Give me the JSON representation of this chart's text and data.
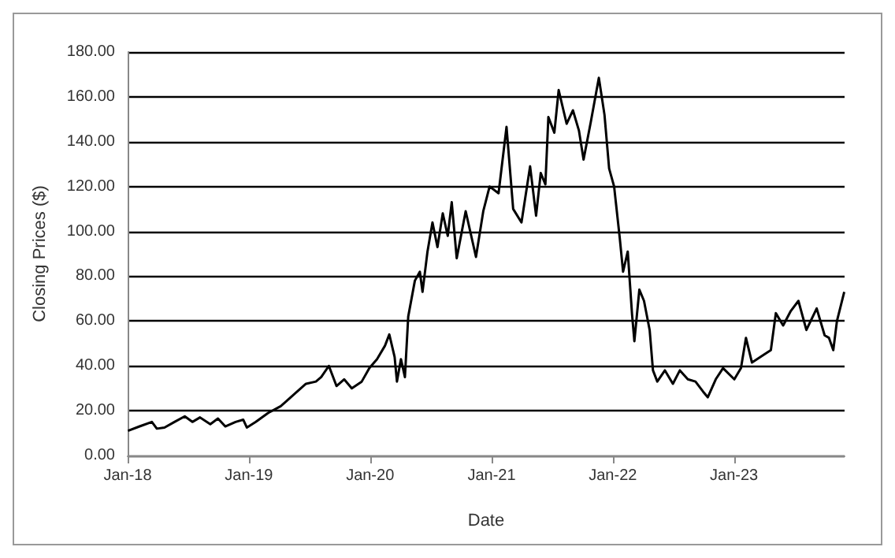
{
  "chart_data": {
    "type": "line",
    "xlabel": "Date",
    "ylabel": "Closing Prices ($)",
    "x": [
      "2018-01-02",
      "2018-02-06",
      "2018-03-15",
      "2018-03-30",
      "2018-04-22",
      "2018-05-22",
      "2018-06-22",
      "2018-07-15",
      "2018-08-07",
      "2018-09-07",
      "2018-09-30",
      "2018-10-22",
      "2018-11-22",
      "2018-12-15",
      "2018-12-26",
      "2019-01-22",
      "2019-02-28",
      "2019-04-07",
      "2019-05-15",
      "2019-06-22",
      "2019-07-22",
      "2019-08-07",
      "2019-08-30",
      "2019-09-22",
      "2019-10-15",
      "2019-11-07",
      "2019-12-07",
      "2019-12-30",
      "2020-01-22",
      "2020-02-15",
      "2020-02-28",
      "2020-03-15",
      "2020-03-22",
      "2020-04-03",
      "2020-04-15",
      "2020-04-25",
      "2020-05-15",
      "2020-05-30",
      "2020-06-07",
      "2020-06-22",
      "2020-07-07",
      "2020-07-22",
      "2020-08-07",
      "2020-08-22",
      "2020-09-03",
      "2020-09-18",
      "2020-10-15",
      "2020-11-15",
      "2020-12-07",
      "2020-12-26",
      "2021-01-22",
      "2021-02-15",
      "2021-03-07",
      "2021-04-01",
      "2021-04-27",
      "2021-05-15",
      "2021-05-29",
      "2021-06-12",
      "2021-06-21",
      "2021-07-09",
      "2021-07-22",
      "2021-08-15",
      "2021-09-03",
      "2021-09-21",
      "2021-10-05",
      "2021-10-27",
      "2021-11-20",
      "2021-12-07",
      "2021-12-21",
      "2022-01-05",
      "2022-01-22",
      "2022-02-01",
      "2022-02-15",
      "2022-02-28",
      "2022-03-07",
      "2022-03-22",
      "2022-04-05",
      "2022-04-22",
      "2022-05-02",
      "2022-05-15",
      "2022-06-07",
      "2022-07-01",
      "2022-07-22",
      "2022-08-15",
      "2022-09-07",
      "2022-09-30",
      "2022-10-14",
      "2022-11-07",
      "2022-11-29",
      "2023-01-02",
      "2023-01-22",
      "2023-02-06",
      "2023-02-24",
      "2023-04-01",
      "2023-04-22",
      "2023-05-07",
      "2023-05-29",
      "2023-06-21",
      "2023-07-14",
      "2023-08-07",
      "2023-09-07",
      "2023-10-01",
      "2023-10-14",
      "2023-10-27",
      "2023-11-07",
      "2023-11-29"
    ],
    "series": [
      {
        "color": "#000000",
        "values": [
          11,
          13,
          15,
          12,
          12.5,
          15,
          17.5,
          15,
          17,
          14,
          16.5,
          13,
          15,
          16,
          12.5,
          15,
          19,
          22,
          27,
          32,
          33,
          35,
          40,
          31,
          34,
          30,
          33,
          39,
          43,
          49,
          54,
          44,
          33,
          43,
          35,
          62,
          78,
          82,
          73,
          91,
          104,
          93,
          108,
          98,
          113,
          88,
          109,
          88.6,
          109,
          120,
          117,
          146.6,
          110,
          104,
          129,
          107,
          126,
          121,
          151,
          144,
          163,
          148,
          154,
          145,
          132,
          149,
          168.5,
          152,
          128,
          120,
          97,
          82,
          91,
          63,
          51,
          74,
          69,
          56,
          38,
          33,
          38,
          32,
          38,
          34,
          33,
          28.5,
          26,
          34,
          39,
          34,
          39,
          52.5,
          41.5,
          45,
          47,
          63.5,
          58,
          64.5,
          69,
          56,
          65.6,
          53.6,
          52.5,
          47,
          60,
          73
        ]
      }
    ],
    "xlim": [
      "2018-01-01",
      "2023-11-30"
    ],
    "xticks": [
      {
        "value": "2018-01-01",
        "label": "Jan-18"
      },
      {
        "value": "2019-01-01",
        "label": "Jan-19"
      },
      {
        "value": "2020-01-01",
        "label": "Jan-20"
      },
      {
        "value": "2021-01-01",
        "label": "Jan-21"
      },
      {
        "value": "2022-01-01",
        "label": "Jan-22"
      },
      {
        "value": "2023-01-01",
        "label": "Jan-23"
      }
    ],
    "ylim": [
      0,
      180
    ],
    "yticks": [
      {
        "value": 0,
        "label": "0.00"
      },
      {
        "value": 20,
        "label": "20.00"
      },
      {
        "value": 40,
        "label": "40.00"
      },
      {
        "value": 60,
        "label": "60.00"
      },
      {
        "value": 80,
        "label": "80.00"
      },
      {
        "value": 100,
        "label": "100.00"
      },
      {
        "value": 120,
        "label": "120.00"
      },
      {
        "value": 140,
        "label": "140.00"
      },
      {
        "value": 160,
        "label": "160.00"
      },
      {
        "value": 180,
        "label": "180.00"
      }
    ],
    "grid": "y",
    "marker": "none",
    "line_style": "solid"
  }
}
